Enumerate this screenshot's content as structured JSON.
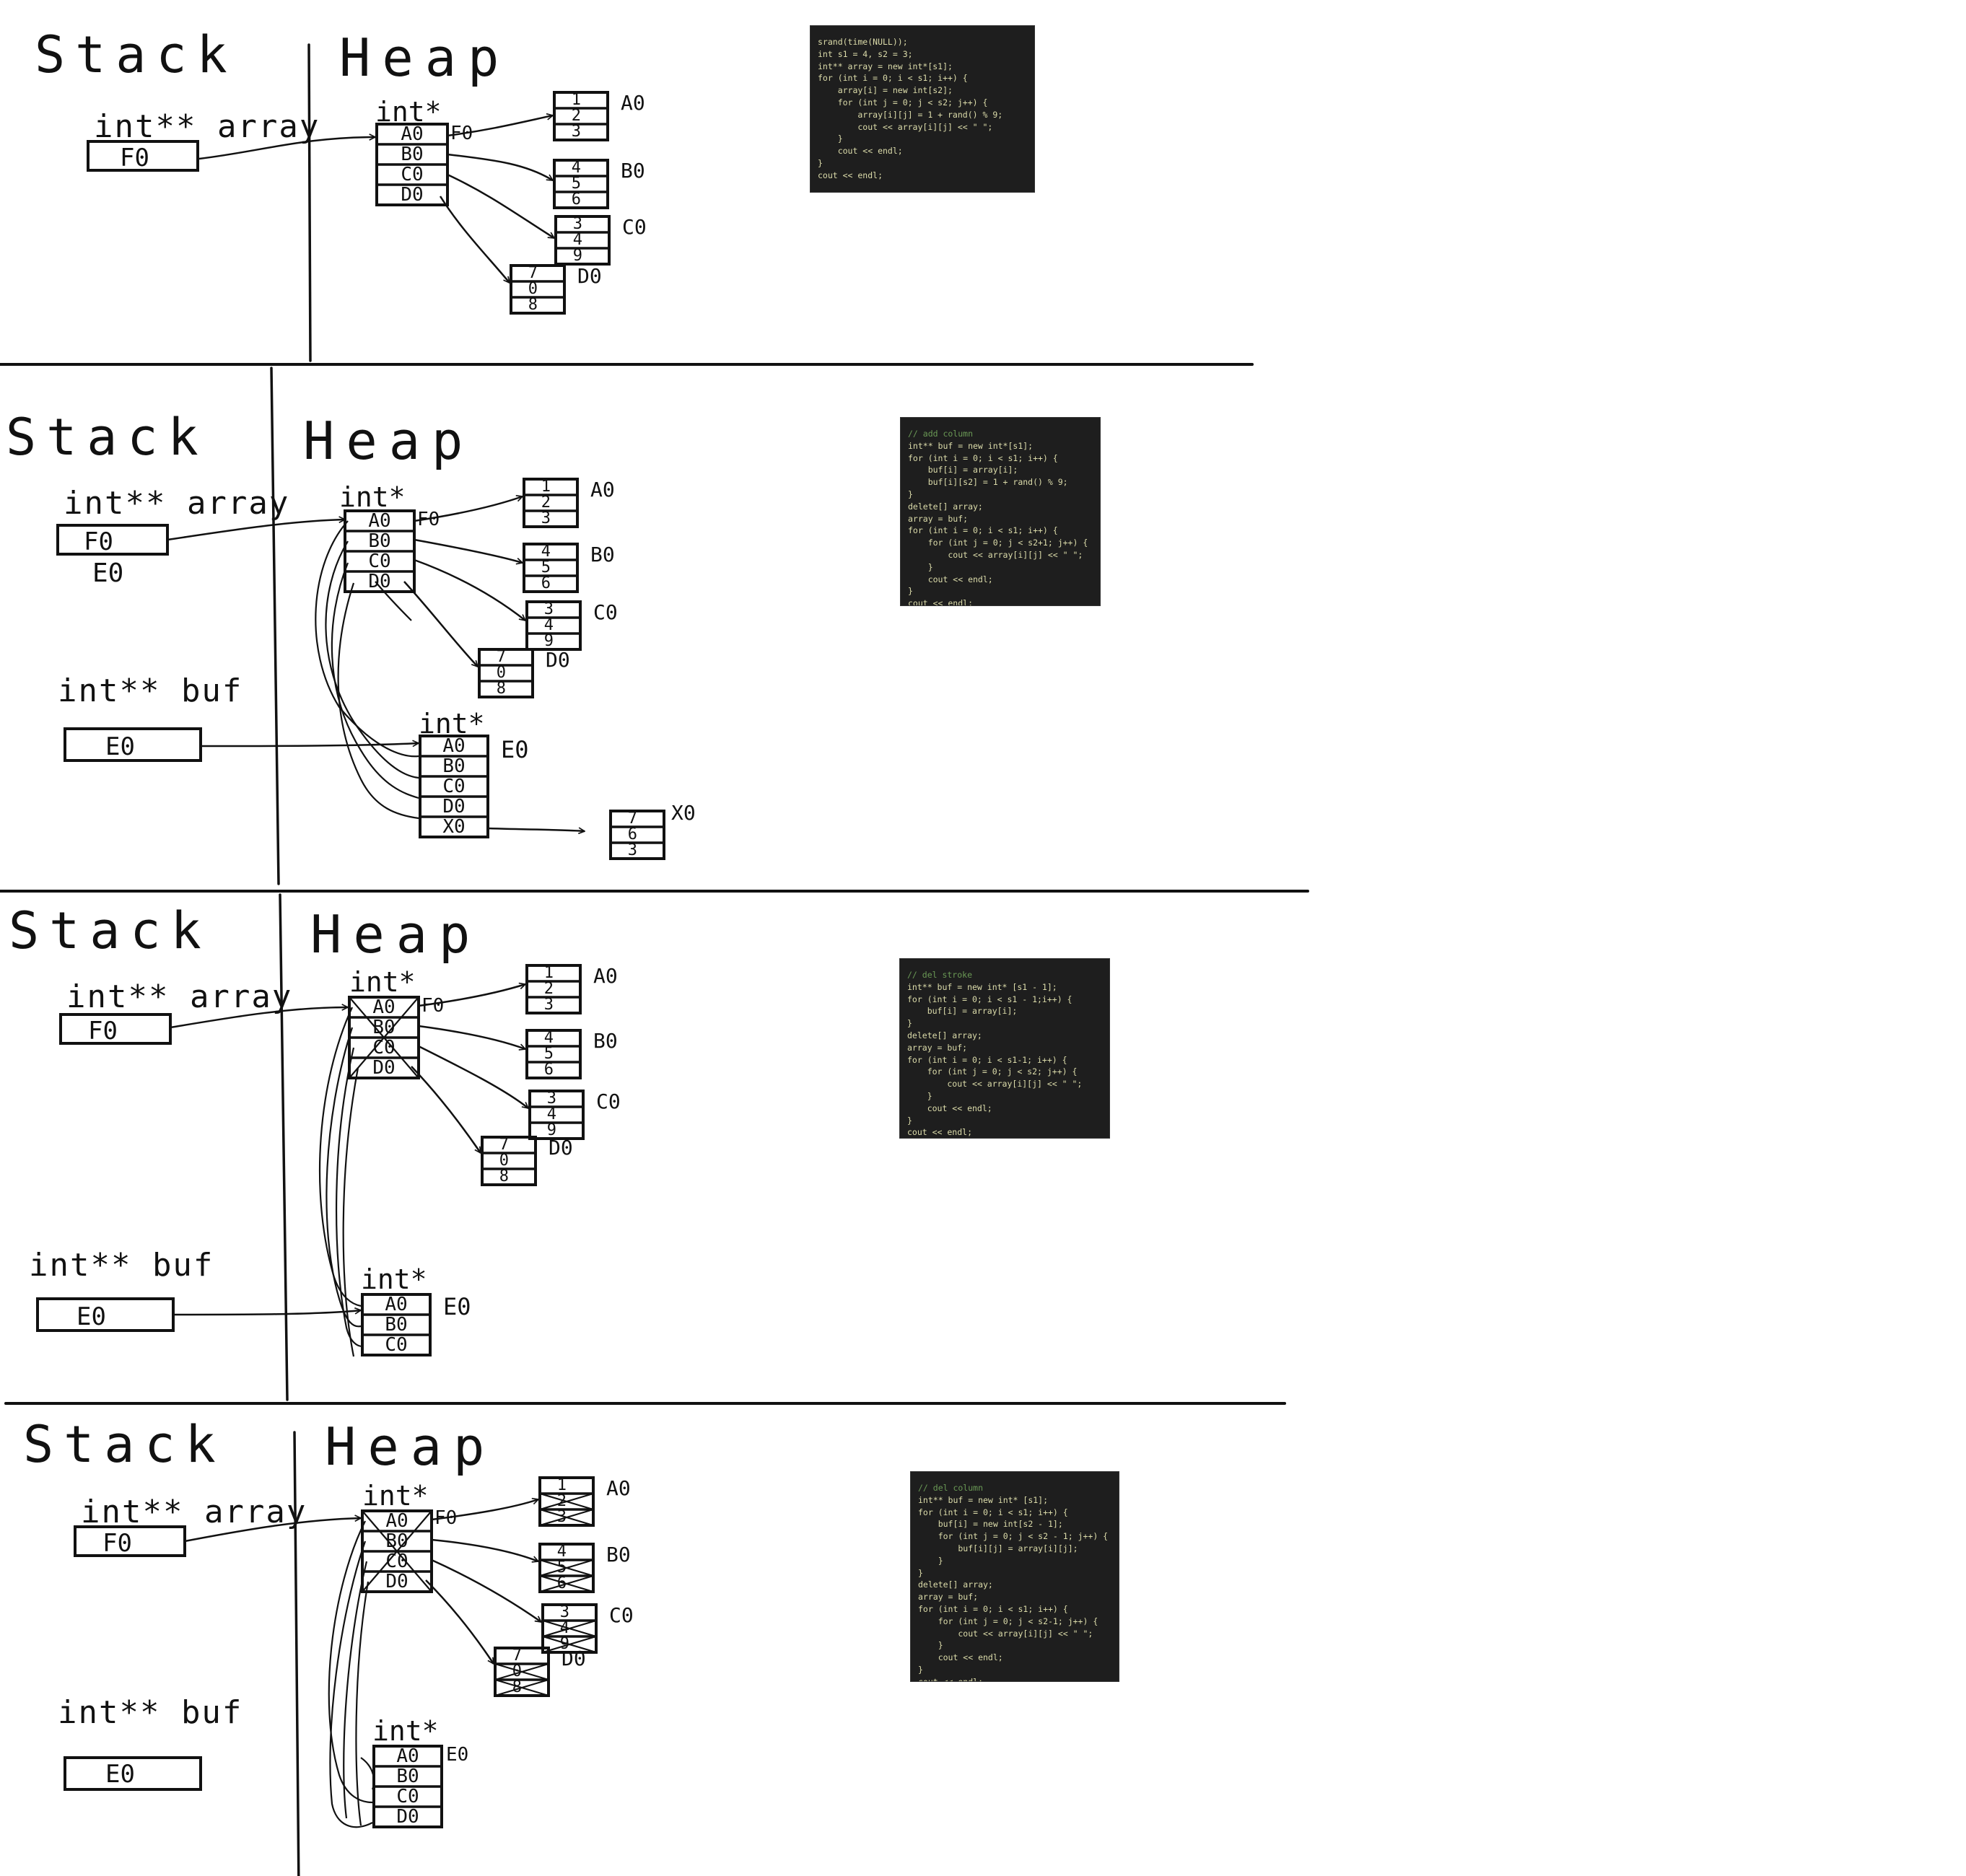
{
  "panels": [
    {
      "stack_label": "Stack",
      "heap_label": "Heap",
      "array_var": {
        "label": "int** array",
        "value": "F0"
      },
      "heap_table": {
        "label": "int*",
        "name": "F0",
        "cells": [
          "A0",
          "B0",
          "C0",
          "D0"
        ]
      },
      "rows": [
        {
          "name": "A0",
          "values": [
            "1",
            "2",
            "3"
          ]
        },
        {
          "name": "B0",
          "values": [
            "4",
            "5",
            "6"
          ]
        },
        {
          "name": "C0",
          "values": [
            "3",
            "4",
            "9"
          ]
        },
        {
          "name": "D0",
          "values": [
            "7",
            "0",
            "8"
          ]
        }
      ],
      "code": {
        "lines": [
          "srand(time(NULL));",
          "int s1 = 4, s2 = 3;",
          "int** array = new int*[s1];",
          "for (int i = 0; i < s1; i++) {",
          "    array[i] = new int[s2];",
          "    for (int j = 0; j < s2; j++) {",
          "        array[i][j] = 1 + rand() % 9;",
          "        cout << array[i][j] << \" \";",
          "    }",
          "    cout << endl;",
          "}",
          "cout << endl;"
        ]
      }
    },
    {
      "stack_label": "Stack",
      "heap_label": "Heap",
      "array_var": {
        "label": "int** array",
        "value": "F0",
        "note": "E0"
      },
      "buf_var": {
        "label": "int** buf",
        "value": "E0"
      },
      "heap_table": {
        "label": "int*",
        "name": "F0",
        "cells": [
          "A0",
          "B0",
          "C0",
          "D0"
        ]
      },
      "buf_table": {
        "label": "int*",
        "name": "E0",
        "cells": [
          "A0",
          "B0",
          "C0",
          "D0",
          "X0"
        ]
      },
      "rows": [
        {
          "name": "A0",
          "values": [
            "1",
            "2",
            "3"
          ]
        },
        {
          "name": "B0",
          "values": [
            "4",
            "5",
            "6"
          ]
        },
        {
          "name": "C0",
          "values": [
            "3",
            "4",
            "9"
          ]
        },
        {
          "name": "D0",
          "values": [
            "7",
            "0",
            "8"
          ]
        }
      ],
      "extra_row": {
        "name": "X0",
        "values": [
          "7",
          "6",
          "3"
        ]
      },
      "code": {
        "lines": [
          "// add column",
          "",
          "int** buf = new int*[s1];",
          "for (int i = 0; i < s1; i++) {",
          "    buf[i] = array[i];",
          "    buf[i][s2] = 1 + rand() % 9;",
          "}",
          "delete[] array;",
          "array = buf;",
          "for (int i = 0; i < s1; i++) {",
          "    for (int j = 0; j < s2+1; j++) {",
          "        cout << array[i][j] << \" \";",
          "    }",
          "    cout << endl;",
          "}",
          "cout << endl;"
        ]
      }
    },
    {
      "stack_label": "Stack",
      "heap_label": "Heap",
      "array_var": {
        "label": "int** array",
        "value": "F0"
      },
      "buf_var": {
        "label": "int** buf",
        "value": "E0"
      },
      "heap_table": {
        "label": "int*",
        "name": "F0",
        "cells": [
          "A0",
          "B0",
          "C0",
          "D0"
        ]
      },
      "buf_table": {
        "label": "int*",
        "name": "E0",
        "cells": [
          "A0",
          "B0",
          "C0"
        ]
      },
      "rows": [
        {
          "name": "A0",
          "values": [
            "1",
            "2",
            "3"
          ]
        },
        {
          "name": "B0",
          "values": [
            "4",
            "5",
            "6"
          ]
        },
        {
          "name": "C0",
          "values": [
            "3",
            "4",
            "9"
          ]
        },
        {
          "name": "D0",
          "values": [
            "7",
            "0",
            "8"
          ]
        }
      ],
      "code": {
        "lines": [
          "// del stroke",
          "",
          "int** buf = new int* [s1 - 1];",
          "for (int i = 0; i < s1 - 1;i++) {",
          "    buf[i] = array[i];",
          "}",
          "delete[] array;",
          "array = buf;",
          "for (int i = 0; i < s1-1; i++) {",
          "    for (int j = 0; j < s2; j++) {",
          "        cout << array[i][j] << \" \";",
          "    }",
          "    cout << endl;",
          "}",
          "cout << endl;"
        ]
      }
    },
    {
      "stack_label": "Stack",
      "heap_label": "Heap",
      "array_var": {
        "label": "int** array",
        "value": "F0"
      },
      "buf_var": {
        "label": "int** buf",
        "value": "E0"
      },
      "heap_table": {
        "label": "int*",
        "name": "F0",
        "cells": [
          "A0",
          "B0",
          "C0",
          "D0"
        ]
      },
      "buf_table": {
        "label": "int*",
        "name": "E0",
        "cells": [
          "A0",
          "B0",
          "C0",
          "D0"
        ]
      },
      "rows": [
        {
          "name": "A0",
          "values": [
            "1",
            "2",
            "3"
          ]
        },
        {
          "name": "B0",
          "values": [
            "4",
            "5",
            "6"
          ]
        },
        {
          "name": "C0",
          "values": [
            "3",
            "4",
            "9"
          ]
        },
        {
          "name": "D0",
          "values": [
            "7",
            "0",
            "8"
          ]
        }
      ],
      "code": {
        "lines": [
          "// del column",
          "",
          "int** buf = new int* [s1];",
          "for (int i = 0; i < s1; i++) {",
          "    buf[i] = new int[s2 - 1];",
          "    for (int j = 0; j < s2 - 1; j++) {",
          "        buf[i][j] = array[i][j];",
          "    }",
          "}",
          "delete[] array;",
          "array = buf;",
          "for (int i = 0; i < s1; i++) {",
          "    for (int j = 0; j < s2-1; j++) {",
          "        cout << array[i][j] << \" \";",
          "    }",
          "    cout << endl;",
          "}",
          "cout << endl;"
        ]
      }
    }
  ]
}
